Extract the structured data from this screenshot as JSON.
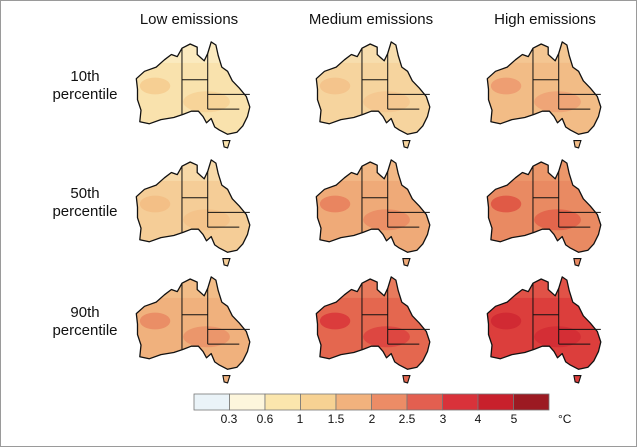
{
  "columns": [
    "Low emissions",
    "Medium emissions",
    "High emissions"
  ],
  "rows": [
    {
      "line1": "10th",
      "line2": "percentile"
    },
    {
      "line1": "50th",
      "line2": "percentile"
    },
    {
      "line1": "90th",
      "line2": "percentile"
    }
  ],
  "colorbar": {
    "tick_labels": [
      "0.3",
      "0.6",
      "1",
      "1.5",
      "2",
      "2.5",
      "3",
      "4",
      "5"
    ],
    "unit": "°C",
    "bin_colors": [
      "#eaf3f8",
      "#fdf6dc",
      "#fbe6ad",
      "#f7d293",
      "#f2b27d",
      "#ec8c66",
      "#e35f50",
      "#d9323a",
      "#c8202c",
      "#9c1a22"
    ]
  },
  "maps": [
    {
      "row": 0,
      "col": 0,
      "base_color": "#f9e2ad",
      "north_color": "#fbecc3",
      "hot_color": "#f6cf93"
    },
    {
      "row": 0,
      "col": 1,
      "base_color": "#f6d49e",
      "north_color": "#f8deb0",
      "hot_color": "#f4c48c"
    },
    {
      "row": 0,
      "col": 2,
      "base_color": "#f2bc86",
      "north_color": "#f4c895",
      "hot_color": "#ee9e72"
    },
    {
      "row": 1,
      "col": 0,
      "base_color": "#f5cd97",
      "north_color": "#f8dcad",
      "hot_color": "#f3bf86"
    },
    {
      "row": 1,
      "col": 1,
      "base_color": "#efaa78",
      "north_color": "#f2bb88",
      "hot_color": "#e98560"
    },
    {
      "row": 1,
      "col": 2,
      "base_color": "#e98a62",
      "north_color": "#ec9a6d",
      "hot_color": "#e05a46"
    },
    {
      "row": 2,
      "col": 0,
      "base_color": "#f0b17d",
      "north_color": "#f3bf8a",
      "hot_color": "#ea8e66"
    },
    {
      "row": 2,
      "col": 1,
      "base_color": "#e4674f",
      "north_color": "#e97f5f",
      "hot_color": "#db3c3c"
    },
    {
      "row": 2,
      "col": 2,
      "base_color": "#dc3e3c",
      "north_color": "#e2584a",
      "hot_color": "#d12a33"
    }
  ]
}
